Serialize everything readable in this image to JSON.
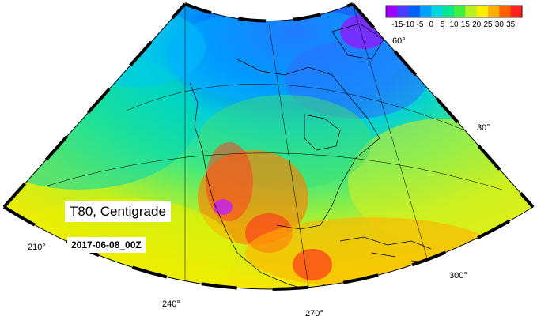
{
  "map": {
    "variable_label": "T80, Centigrade",
    "date_label": "2017-06-08_00Z",
    "longitude_labels": [
      "210°",
      "240°",
      "270°",
      "300°"
    ],
    "latitude_labels": [
      "60°",
      "30°"
    ]
  },
  "colorbar": {
    "ticks": [
      "-15",
      "-10",
      "-5",
      "0",
      "5",
      "10",
      "15",
      "20",
      "25",
      "30",
      "35"
    ],
    "colors": [
      "#a000ff",
      "#4a3cff",
      "#0060ff",
      "#00a0ff",
      "#00d8e0",
      "#00e890",
      "#40f040",
      "#b8f020",
      "#f8f000",
      "#ffb000",
      "#ff6000",
      "#ff2020"
    ]
  }
}
